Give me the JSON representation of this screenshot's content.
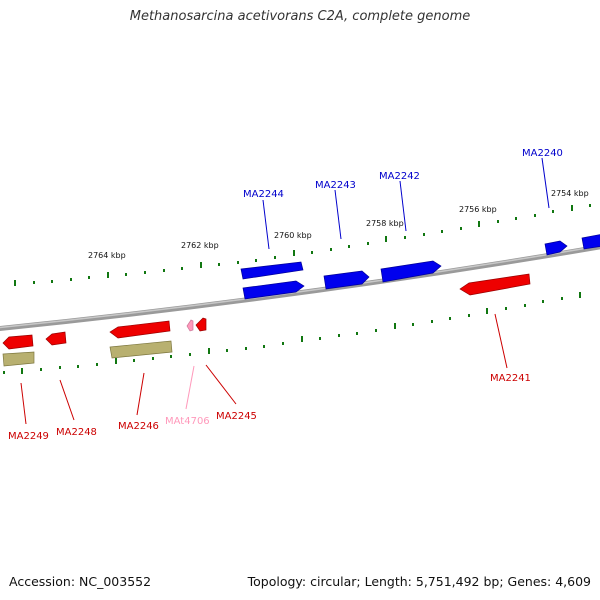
{
  "title": "Methanosarcina acetivorans C2A, complete genome",
  "footer": {
    "accession": "Accession: NC_003552",
    "topology": "Topology: circular; Length: 5,751,492 bp; Genes: 4,609"
  },
  "colors": {
    "forward_gene": "#0000ee",
    "reverse_gene": "#ee0000",
    "rna_gene": "#ff99bb",
    "rrna_like": "#b8b070",
    "tick": "#117711",
    "backbone": "#808080"
  },
  "scale_labels": [
    "2754 kbp",
    "2756 kbp",
    "2758 kbp",
    "2760 kbp",
    "2762 kbp",
    "2764 kbp"
  ],
  "genes": {
    "forward": [
      "MA2240",
      "MA2242",
      "MA2243",
      "MA2244"
    ],
    "reverse": [
      "MA2241",
      "MA2245",
      "MAt4706",
      "MA2246",
      "MA2248",
      "MA2249"
    ]
  }
}
